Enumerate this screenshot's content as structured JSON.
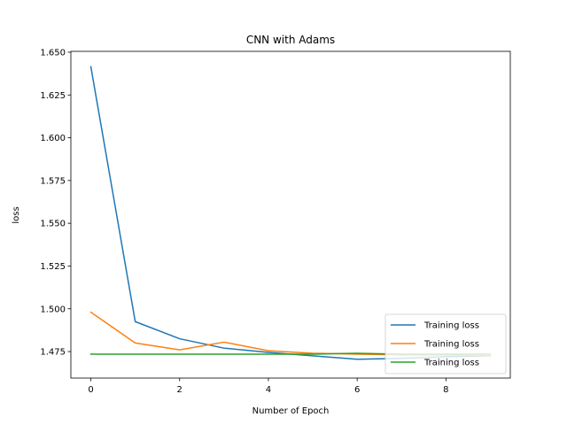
{
  "chart_data": {
    "type": "line",
    "title": "CNN with Adams",
    "xlabel": "Number of Epoch",
    "ylabel": "loss",
    "xlim": [
      -0.45,
      9.45
    ],
    "ylim": [
      1.4595,
      1.6505
    ],
    "x_ticks": [
      0,
      2,
      4,
      6,
      8
    ],
    "y_ticks": [
      1.475,
      1.5,
      1.525,
      1.55,
      1.575,
      1.6,
      1.625,
      1.65
    ],
    "x_tick_labels": [
      "0",
      "2",
      "4",
      "6",
      "8"
    ],
    "y_tick_labels": [
      "1.475",
      "1.500",
      "1.525",
      "1.550",
      "1.575",
      "1.600",
      "1.625",
      "1.650"
    ],
    "grid": false,
    "legend_position": "lower-right",
    "x": [
      0,
      1,
      2,
      3,
      4,
      5,
      6,
      7,
      8,
      9
    ],
    "series": [
      {
        "name": "Training loss",
        "color": "#1f77b4",
        "values": [
          1.6415,
          1.4925,
          1.4825,
          1.477,
          1.4745,
          1.4725,
          1.4705,
          1.471,
          1.472,
          1.4725
        ]
      },
      {
        "name": "Training loss",
        "color": "#ff7f0e",
        "values": [
          1.498,
          1.48,
          1.476,
          1.4805,
          1.4755,
          1.474,
          1.4735,
          1.473,
          1.473,
          1.4725
        ]
      },
      {
        "name": "Training loss",
        "color": "#2ca02c",
        "values": [
          1.4735,
          1.4735,
          1.4735,
          1.4735,
          1.4735,
          1.4735,
          1.474,
          1.4735,
          1.4735,
          1.4735
        ]
      }
    ]
  }
}
